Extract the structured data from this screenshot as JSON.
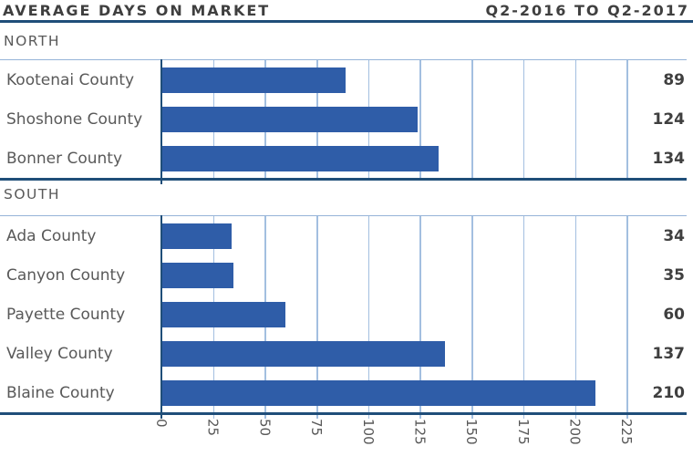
{
  "header": {
    "title": "AVERAGE DAYS ON MARKET",
    "period": "Q2-2016 TO Q2-2017"
  },
  "chart_data": {
    "type": "bar",
    "orientation": "horizontal",
    "title": "AVERAGE DAYS ON MARKET",
    "subtitle": "Q2-2016 TO Q2-2017",
    "xlabel": "",
    "ylabel": "",
    "xlim": [
      0,
      254
    ],
    "xticks": [
      0,
      25,
      50,
      75,
      100,
      125,
      150,
      175,
      200,
      225
    ],
    "grid": true,
    "value_labels": true,
    "legend": "none",
    "sections": [
      {
        "label": "NORTH",
        "categories": [
          "Kootenai County",
          "Shoshone County",
          "Bonner County"
        ],
        "values": [
          89,
          124,
          134
        ]
      },
      {
        "label": "SOUTH",
        "categories": [
          "Ada County",
          "Canyon County",
          "Payette County",
          "Valley County",
          "Blaine County"
        ],
        "values": [
          34,
          35,
          60,
          137,
          210
        ]
      }
    ]
  },
  "colors": {
    "bar": "#2F5DA8",
    "axis": "#1F4E79",
    "grid": "#A3BFE0",
    "plot_border": "#96B4D8",
    "header_rule": "#1F4E79",
    "title_text": "#3F3F3F",
    "label_text": "#595959",
    "value_text": "#3F3F3F"
  }
}
